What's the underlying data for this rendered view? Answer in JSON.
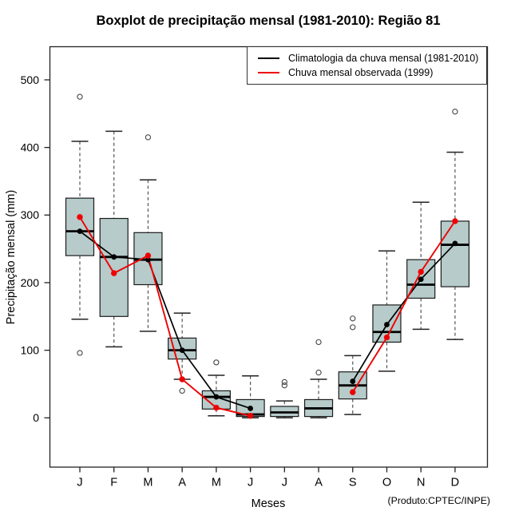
{
  "title": "Boxplot de precipitação mensal (1981-2010): Região 81",
  "y_axis": {
    "label": "Precipitação mensal (mm)",
    "ticks": [
      0,
      100,
      200,
      300,
      400,
      500
    ]
  },
  "x_axis": {
    "label": "Meses",
    "ticks": [
      "J",
      "F",
      "M",
      "A",
      "M",
      "J",
      "J",
      "A",
      "S",
      "O",
      "N",
      "D"
    ]
  },
  "credit": "(Produto:CPTEC/INPE)",
  "legend": {
    "items": [
      {
        "label": "Climatologia da chuva mensal (1981-2010)",
        "color": "#000000"
      },
      {
        "label": "Chuva mensal observada (1999)",
        "color": "#ee0000"
      }
    ]
  },
  "chart_data": {
    "type": "boxplot",
    "title": "Boxplot de precipitação mensal (1981-2010): Região 81",
    "xlabel": "Meses",
    "ylabel": "Precipitação mensal (mm)",
    "ylim": [
      -65,
      545
    ],
    "grid": false,
    "legend_position": "top-right",
    "categories": [
      "J",
      "F",
      "M",
      "A",
      "M",
      "J",
      "J",
      "A",
      "S",
      "O",
      "N",
      "D"
    ],
    "boxes": [
      {
        "month": "J",
        "whisker_low": 146,
        "q1": 240,
        "median": 276,
        "q3": 325,
        "whisker_high": 409,
        "outliers": [
          475,
          96
        ]
      },
      {
        "month": "F",
        "whisker_low": 105,
        "q1": 150,
        "median": 238,
        "q3": 295,
        "whisker_high": 424,
        "outliers": []
      },
      {
        "month": "M",
        "whisker_low": 128,
        "q1": 197,
        "median": 234,
        "q3": 274,
        "whisker_high": 352,
        "outliers": [
          415
        ]
      },
      {
        "month": "A",
        "whisker_low": 57,
        "q1": 87,
        "median": 100,
        "q3": 118,
        "whisker_high": 155,
        "outliers": [
          40
        ]
      },
      {
        "month": "M",
        "whisker_low": 3,
        "q1": 13,
        "median": 31,
        "q3": 40,
        "whisker_high": 63,
        "outliers": [
          82
        ]
      },
      {
        "month": "J",
        "whisker_low": 0,
        "q1": 2,
        "median": 5,
        "q3": 27,
        "whisker_high": 62,
        "outliers": []
      },
      {
        "month": "J",
        "whisker_low": 0,
        "q1": 2,
        "median": 8,
        "q3": 17,
        "whisker_high": 25,
        "outliers": [
          53,
          48
        ]
      },
      {
        "month": "A",
        "whisker_low": 0,
        "q1": 2,
        "median": 14,
        "q3": 27,
        "whisker_high": 57,
        "outliers": [
          112,
          67
        ]
      },
      {
        "month": "S",
        "whisker_low": 5,
        "q1": 28,
        "median": 48,
        "q3": 68,
        "whisker_high": 92,
        "outliers": [
          147,
          134
        ]
      },
      {
        "month": "O",
        "whisker_low": 69,
        "q1": 112,
        "median": 127,
        "q3": 167,
        "whisker_high": 247,
        "outliers": []
      },
      {
        "month": "N",
        "whisker_low": 131,
        "q1": 177,
        "median": 197,
        "q3": 234,
        "whisker_high": 319,
        "outliers": []
      },
      {
        "month": "D",
        "whisker_low": 116,
        "q1": 194,
        "median": 256,
        "q3": 291,
        "whisker_high": 393,
        "outliers": [
          453
        ]
      }
    ],
    "series": [
      {
        "name": "Climatologia da chuva mensal (1981-2010)",
        "color": "#000000",
        "values": [
          276,
          238,
          234,
          100,
          31,
          14,
          null,
          null,
          54,
          138,
          205,
          258
        ]
      },
      {
        "name": "Chuva mensal observada (1999)",
        "color": "#ee0000",
        "values": [
          297,
          214,
          240,
          57,
          15,
          3,
          null,
          null,
          38,
          119,
          216,
          291
        ]
      }
    ],
    "style": {
      "box_fill": "#b6cbca",
      "box_border": "#1b1b1b",
      "median_color": "#000000",
      "whisker_color": "#555555",
      "cap_color": "#222222",
      "outlier_color": "#444444",
      "frame_color": "#222222"
    }
  }
}
